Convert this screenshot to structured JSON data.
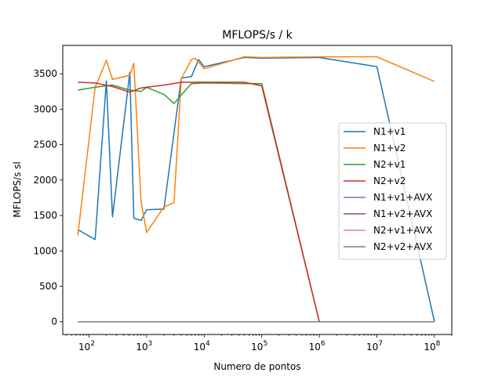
{
  "chart_data": {
    "type": "line",
    "title": "MFLOPS/s / k",
    "xlabel": "Numero de pontos",
    "ylabel": "MFLOPS/s sl",
    "xscale": "log",
    "xlim": [
      35,
      200000000
    ],
    "ylim": [
      -180,
      3900
    ],
    "xticks": [
      {
        "value": 100,
        "base": "10",
        "exp": "2"
      },
      {
        "value": 1000,
        "base": "10",
        "exp": "3"
      },
      {
        "value": 10000,
        "base": "10",
        "exp": "4"
      },
      {
        "value": 100000,
        "base": "10",
        "exp": "5"
      },
      {
        "value": 1000000,
        "base": "10",
        "exp": "6"
      },
      {
        "value": 10000000,
        "base": "10",
        "exp": "7"
      },
      {
        "value": 100000000,
        "base": "10",
        "exp": "8"
      }
    ],
    "yticks": [
      0,
      500,
      1000,
      1500,
      2000,
      2500,
      3000,
      3500
    ],
    "grid": false,
    "legend_position": "center-right",
    "series": [
      {
        "name": "N1+v1",
        "color": "#1f77b4",
        "x": [
          64,
          128,
          200,
          256,
          512,
          600,
          800,
          1000,
          2000,
          4000,
          6000,
          8000,
          10000,
          50000,
          100000,
          1000000,
          10000000,
          100000000
        ],
        "y": [
          1300,
          1160,
          3400,
          1480,
          3520,
          1460,
          1430,
          1580,
          1590,
          3440,
          3460,
          3700,
          3600,
          3730,
          3720,
          3730,
          3600,
          0
        ]
      },
      {
        "name": "N1+v2",
        "color": "#ff7f0e",
        "x": [
          64,
          128,
          200,
          256,
          512,
          600,
          800,
          1000,
          2000,
          3000,
          4000,
          6000,
          7000,
          10000,
          50000,
          100000,
          1000000,
          10000000,
          100000000
        ],
        "y": [
          1220,
          3310,
          3690,
          3420,
          3480,
          3650,
          1700,
          1260,
          1620,
          1680,
          3430,
          3700,
          3720,
          3570,
          3740,
          3730,
          3740,
          3740,
          3390
        ]
      },
      {
        "name": "N2+v1",
        "color": "#2ca02c",
        "x": [
          64,
          128,
          256,
          512,
          800,
          1000,
          2000,
          3000,
          4000,
          6000,
          10000,
          50000,
          100000,
          1000000,
          10000000,
          100000000
        ],
        "y": [
          3270,
          3310,
          3340,
          3270,
          3250,
          3310,
          3210,
          3080,
          3200,
          3360,
          3370,
          3360,
          3360,
          0,
          0,
          0
        ]
      },
      {
        "name": "N2+v2",
        "color": "#d62728",
        "x": [
          64,
          128,
          256,
          512,
          800,
          1000,
          2000,
          4000,
          10000,
          50000,
          100000,
          1000000,
          10000000,
          100000000
        ],
        "y": [
          3380,
          3370,
          3320,
          3240,
          3300,
          3310,
          3340,
          3380,
          3380,
          3380,
          3330,
          0,
          0,
          0
        ]
      },
      {
        "name": "N1+v1+AVX",
        "color": "#9467bd",
        "x": [
          64,
          1000,
          100000,
          1000000,
          100000000
        ],
        "y": [
          0,
          0,
          0,
          0,
          0
        ]
      },
      {
        "name": "N1+v2+AVX",
        "color": "#8c564b",
        "x": [
          64,
          1000,
          100000,
          1000000,
          100000000
        ],
        "y": [
          0,
          0,
          0,
          0,
          0
        ]
      },
      {
        "name": "N2+v1+AVX",
        "color": "#e377c2",
        "x": [
          64,
          1000,
          100000,
          1000000,
          100000000
        ],
        "y": [
          0,
          0,
          0,
          0,
          0
        ]
      },
      {
        "name": "N2+v2+AVX",
        "color": "#7f7f7f",
        "x": [
          64,
          1000,
          100000,
          1000000,
          100000000
        ],
        "y": [
          0,
          0,
          0,
          0,
          0
        ]
      }
    ]
  }
}
